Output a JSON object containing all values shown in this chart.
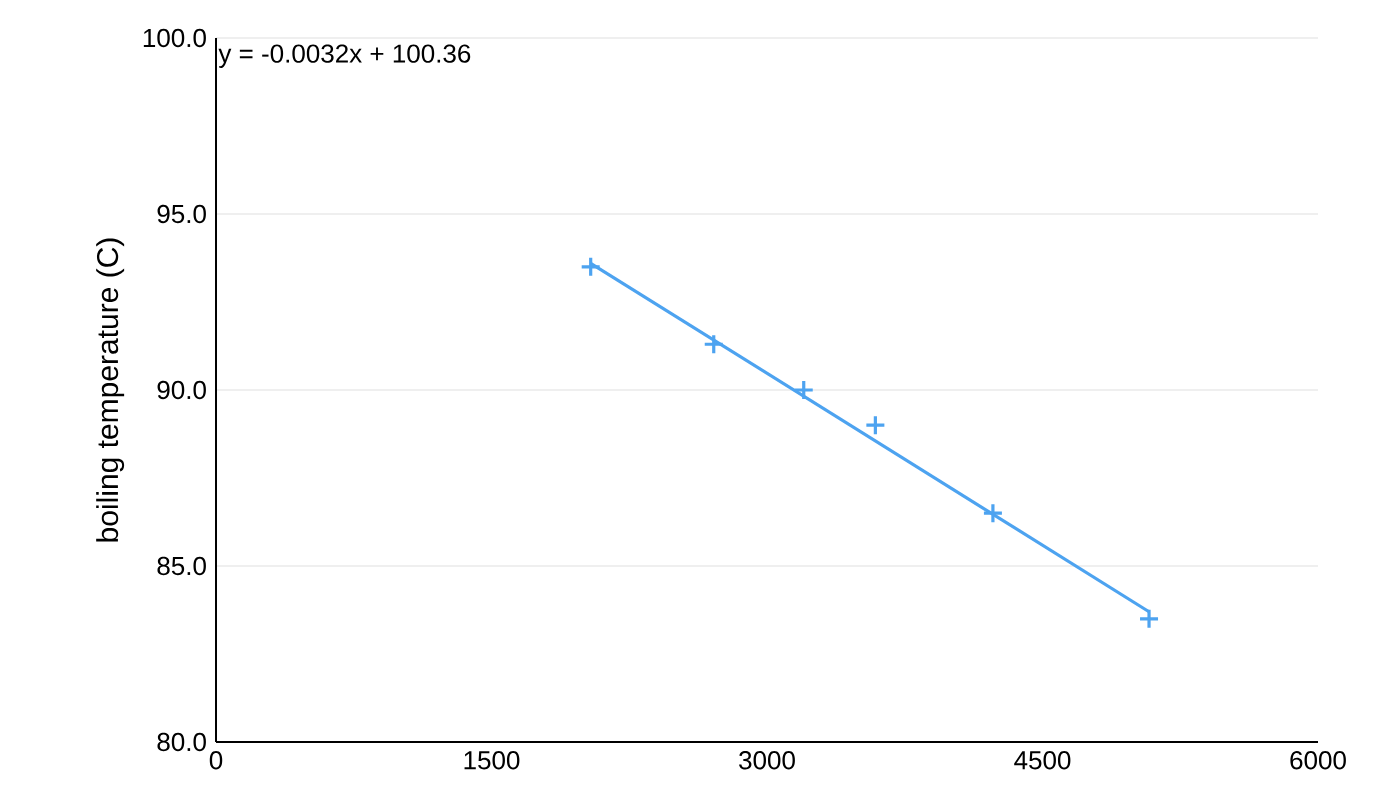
{
  "chart_data": {
    "type": "scatter",
    "ylabel": "boiling temperature (C)",
    "xlim": [
      0,
      6000
    ],
    "xticks": [
      0,
      1500,
      3000,
      4500,
      6000
    ],
    "ylim": [
      80,
      100
    ],
    "yticks": [
      {
        "value": 80,
        "label": "80.0"
      },
      {
        "value": 85,
        "label": "85.0"
      },
      {
        "value": 90,
        "label": "90.0"
      },
      {
        "value": 95,
        "label": "95.0"
      },
      {
        "value": 100,
        "label": "100.0"
      }
    ],
    "grid": "y",
    "marker": "cross",
    "series": [
      {
        "color": "#4da3f0",
        "x": [
          2040,
          2710,
          3200,
          3590,
          4230,
          5080
        ],
        "values": [
          93.5,
          91.3,
          90.0,
          89.0,
          86.5,
          83.5
        ]
      },
      {
        "type": "line",
        "marker": "none",
        "color": "#4da3f0",
        "x": [
          2040,
          5080
        ],
        "values": [
          93.6,
          83.7
        ]
      }
    ],
    "annotations": [
      "y = -0.0032x + 100.36"
    ]
  }
}
